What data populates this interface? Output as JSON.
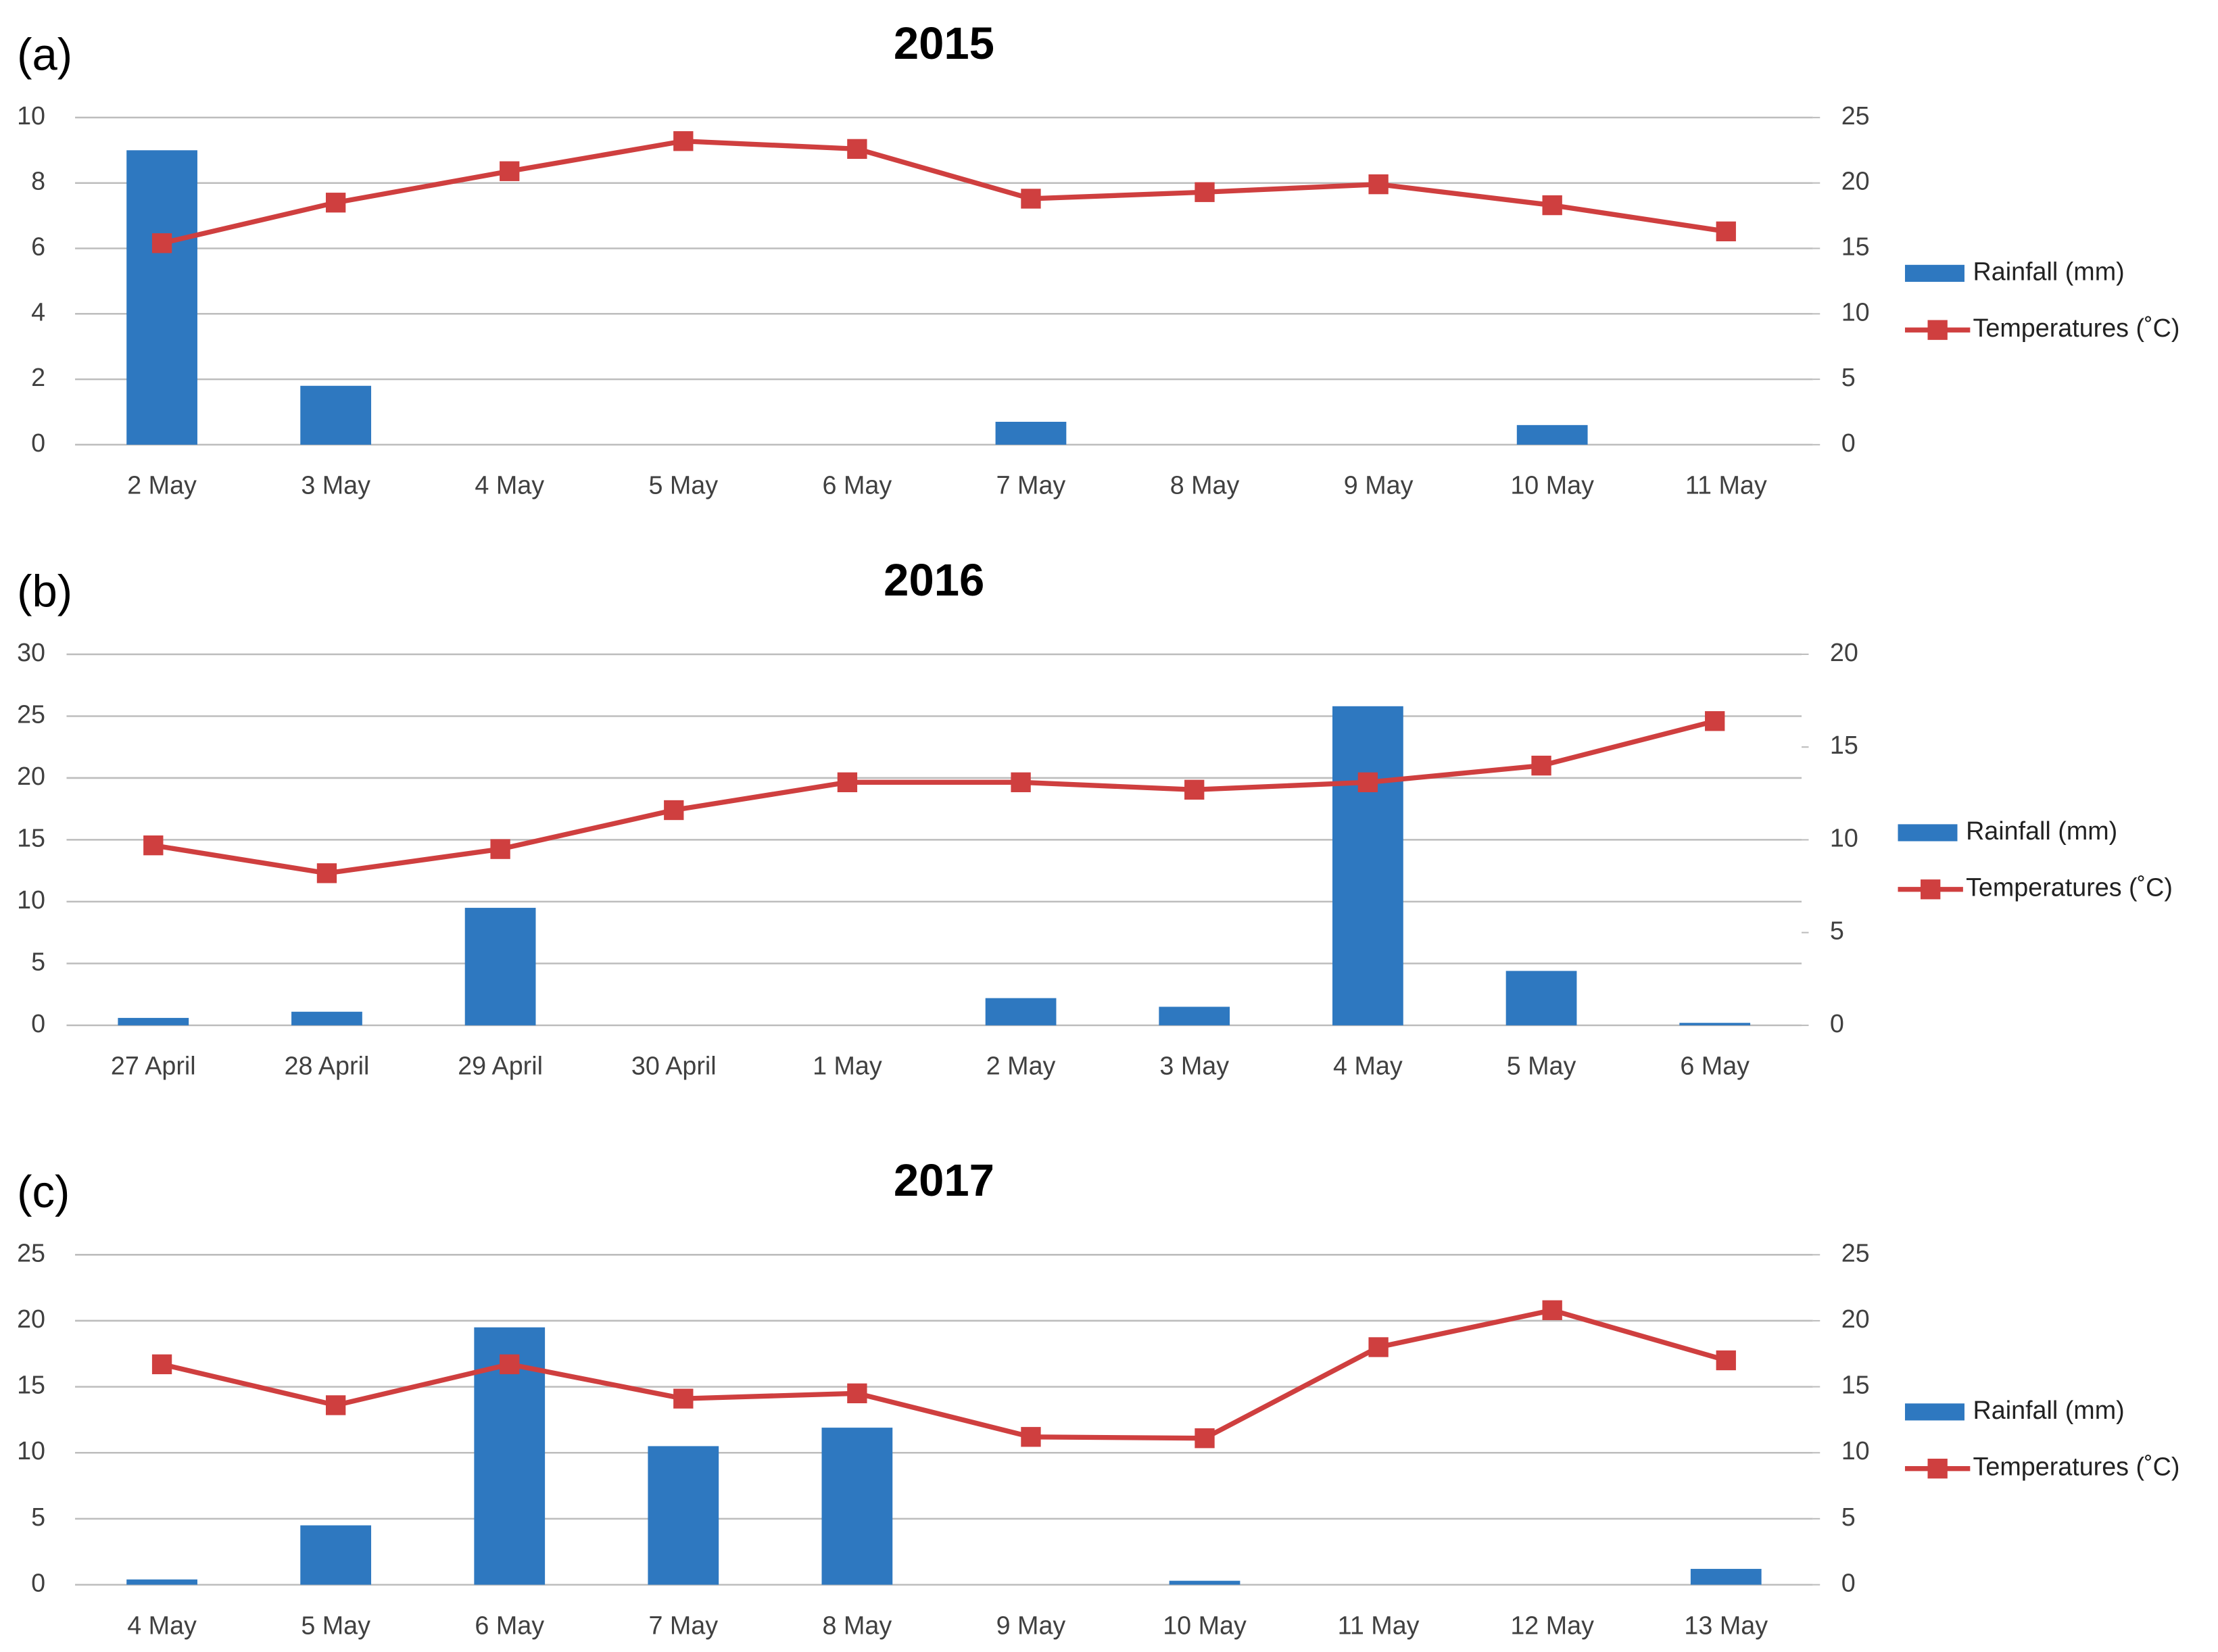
{
  "chart_data": [
    {
      "type": "bar-line",
      "panel_label": "(a)",
      "title": "2015",
      "categories": [
        "2 May",
        "3 May",
        "4 May",
        "5 May",
        "6 May",
        "7 May",
        "8 May",
        "9 May",
        "10 May",
        "11 May"
      ],
      "series": [
        {
          "name": "Rainfall (mm)",
          "type": "bar",
          "color": "#2e78c0",
          "values": [
            9.0,
            1.8,
            0,
            0,
            0,
            0.7,
            0,
            0,
            0.6,
            0
          ]
        },
        {
          "name": "Temperatures (˚C)",
          "type": "line",
          "axis": "y2",
          "color": "#cf3f3f",
          "values": [
            15.4,
            18.5,
            20.9,
            23.2,
            22.6,
            18.8,
            19.3,
            19.9,
            18.3,
            16.3
          ]
        }
      ],
      "ylim": [
        0,
        10
      ],
      "yticks": [
        0,
        2,
        4,
        6,
        8,
        10
      ],
      "y2lim": [
        0,
        25
      ],
      "y2ticks": [
        0,
        5,
        10,
        15,
        20,
        25
      ],
      "grid": true,
      "legend": "right"
    },
    {
      "type": "bar-line",
      "panel_label": "(b)",
      "title": "2016",
      "categories": [
        "27 April",
        "28 April",
        "29 April",
        "30 April",
        "1 May",
        "2 May",
        "3 May",
        "4 May",
        "5 May",
        "6 May"
      ],
      "series": [
        {
          "name": "Rainfall (mm)",
          "type": "bar",
          "color": "#2e78c0",
          "values": [
            0.6,
            1.1,
            9.5,
            0,
            0,
            2.2,
            1.5,
            25.8,
            4.4,
            0.2
          ]
        },
        {
          "name": "Temperatures (˚C)",
          "type": "line",
          "axis": "y2",
          "color": "#cf3f3f",
          "values": [
            9.7,
            8.2,
            9.5,
            11.6,
            13.1,
            13.1,
            12.7,
            13.1,
            14.0,
            16.4
          ]
        }
      ],
      "ylim": [
        0,
        30
      ],
      "yticks": [
        0,
        5,
        10,
        15,
        20,
        25,
        30
      ],
      "y2lim": [
        0,
        20
      ],
      "y2ticks": [
        0,
        5,
        10,
        15,
        20
      ],
      "grid": true,
      "legend": "right"
    },
    {
      "type": "bar-line",
      "panel_label": "(c)",
      "title": "2017",
      "categories": [
        "4 May",
        "5 May",
        "6 May",
        "7 May",
        "8 May",
        "9 May",
        "10 May",
        "11 May",
        "12 May",
        "13 May"
      ],
      "series": [
        {
          "name": "Rainfall (mm)",
          "type": "bar",
          "color": "#2e78c0",
          "values": [
            0.4,
            4.5,
            19.5,
            10.5,
            11.9,
            0,
            0.3,
            0,
            0,
            1.2
          ]
        },
        {
          "name": "Temperatures (˚C)",
          "type": "line",
          "axis": "y2",
          "color": "#cf3f3f",
          "values": [
            16.7,
            13.6,
            16.7,
            14.1,
            14.5,
            11.2,
            11.1,
            18.0,
            20.8,
            17.0
          ]
        }
      ],
      "ylim": [
        0,
        25
      ],
      "yticks": [
        0,
        5,
        10,
        15,
        20,
        25
      ],
      "y2lim": [
        0,
        25
      ],
      "y2ticks": [
        0,
        5,
        10,
        15,
        20,
        25
      ],
      "grid": true,
      "legend": "right"
    }
  ]
}
